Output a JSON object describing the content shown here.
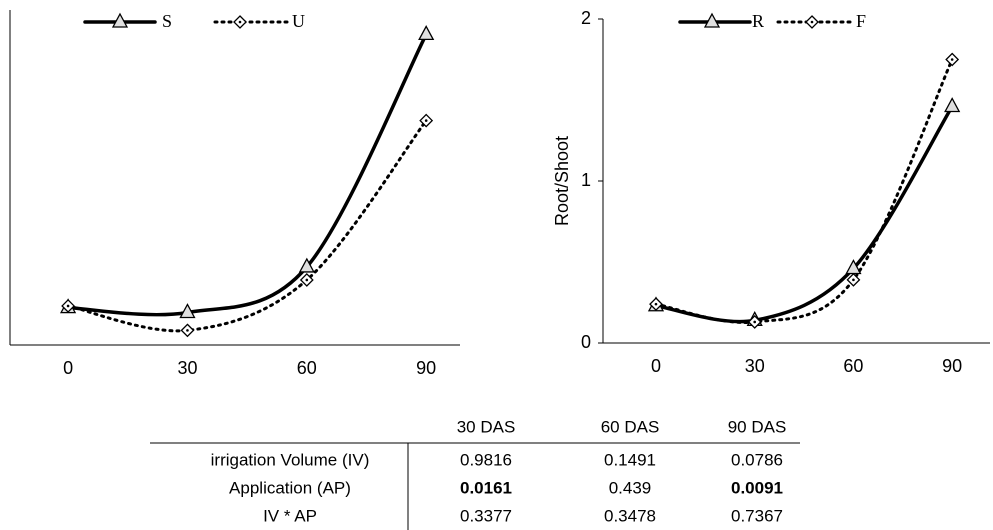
{
  "chart_data": [
    {
      "type": "line",
      "x": [
        0,
        30,
        60,
        90
      ],
      "xlim": [
        -14.6,
        98.5
      ],
      "xticks": [
        0,
        30,
        60,
        90
      ],
      "ylim": [
        0,
        2.06
      ],
      "grid": false,
      "legend": "top",
      "series": [
        {
          "name": "S",
          "color": "#000000",
          "marker": "triangle",
          "dash": "solid",
          "values": [
            0.23,
            0.2,
            0.48,
            1.91
          ]
        },
        {
          "name": "U",
          "color": "#000000",
          "marker": "diamond",
          "dash": "dotted",
          "values": [
            0.24,
            0.09,
            0.4,
            1.38
          ]
        }
      ]
    },
    {
      "type": "line",
      "ylabel": "Root/Shoot",
      "x": [
        0,
        30,
        60,
        90
      ],
      "xlim": [
        -16.1,
        101.5
      ],
      "xticks": [
        0,
        30,
        60,
        90
      ],
      "ylim": [
        0,
        2
      ],
      "yticks": [
        0,
        1,
        2
      ],
      "grid": false,
      "legend": "top",
      "series": [
        {
          "name": "R",
          "color": "#000000",
          "marker": "triangle",
          "dash": "solid",
          "values": [
            0.23,
            0.14,
            0.46,
            1.46
          ]
        },
        {
          "name": "F",
          "color": "#000000",
          "marker": "diamond",
          "dash": "dotted",
          "values": [
            0.24,
            0.13,
            0.39,
            1.75
          ]
        }
      ]
    }
  ],
  "table": {
    "header": [
      "30 DAS",
      "60 DAS",
      "90 DAS"
    ],
    "rows": [
      {
        "label": "irrigation Volume (IV)",
        "cells": [
          "0.9816",
          "0.1491",
          "0.0786"
        ],
        "bold": [
          false,
          false,
          false
        ]
      },
      {
        "label": "Application (AP)",
        "cells": [
          "0.0161",
          "0.439",
          "0.0091"
        ],
        "bold": [
          true,
          false,
          true
        ]
      },
      {
        "label": "IV * AP",
        "cells": [
          "0.3377",
          "0.3478",
          "0.7367"
        ],
        "bold": [
          false,
          false,
          false
        ]
      }
    ]
  }
}
